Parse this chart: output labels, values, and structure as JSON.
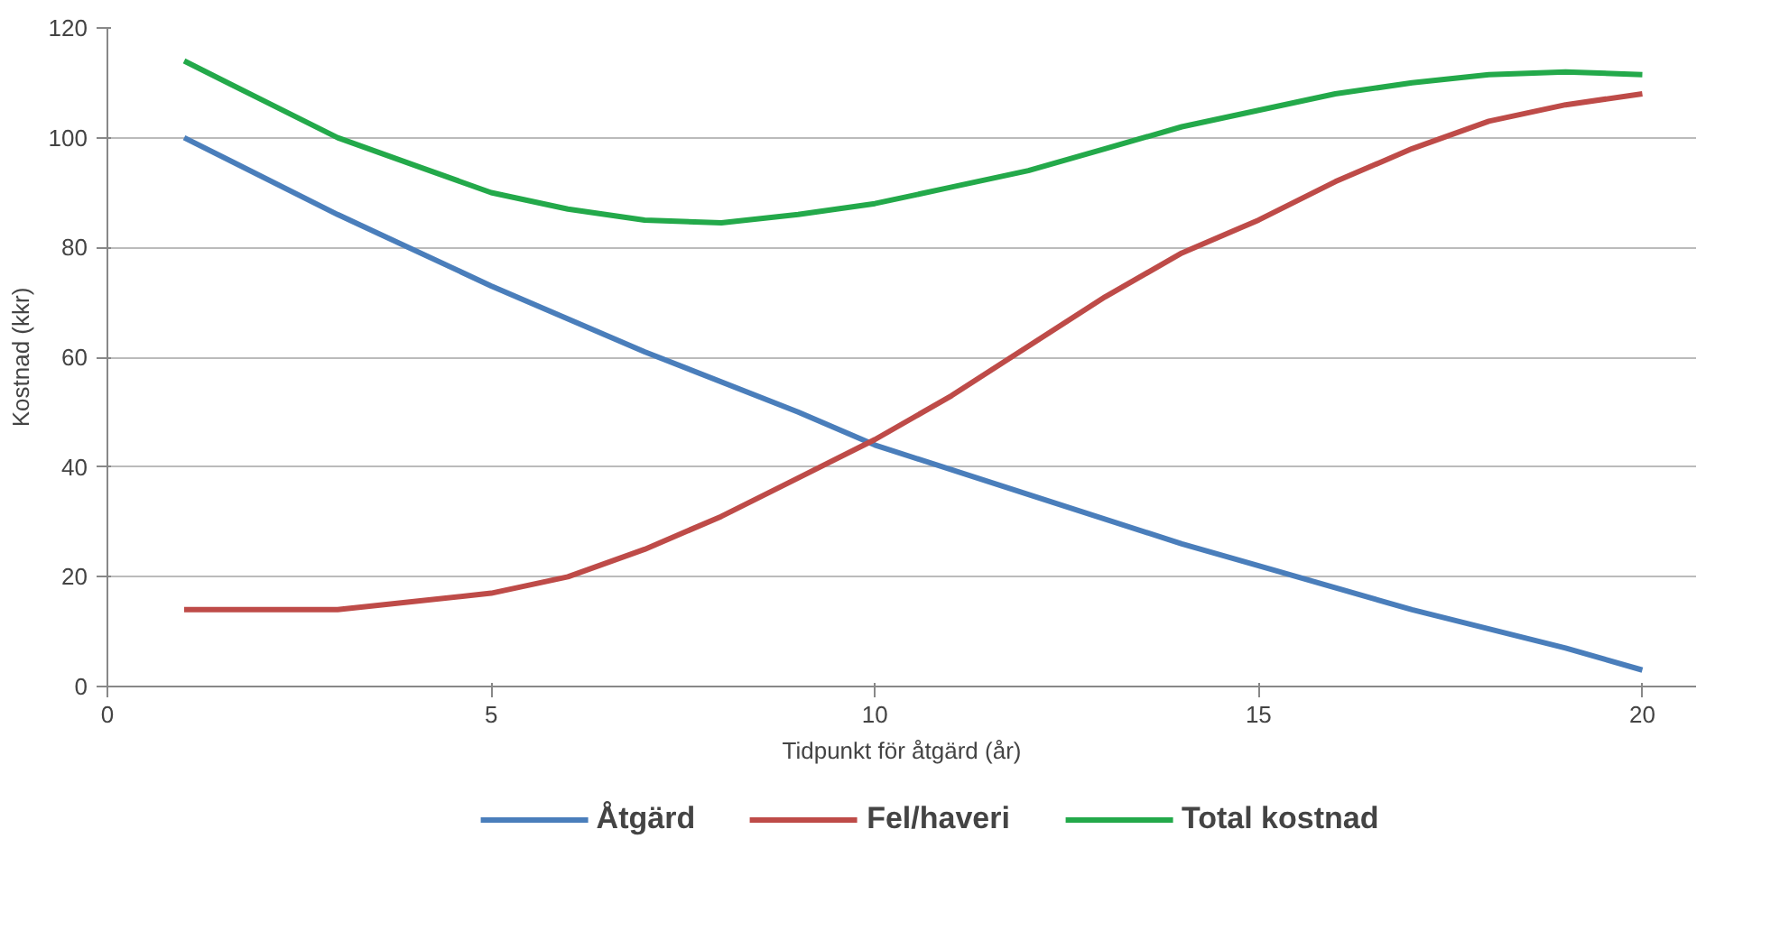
{
  "chart_data": {
    "type": "line",
    "xlabel": "Tidpunkt för åtgärd (år)",
    "ylabel": "Kostnad (kkr)",
    "xlim": [
      0,
      20.7
    ],
    "xticks": [
      0,
      5,
      10,
      15,
      20
    ],
    "ylim": [
      0,
      120
    ],
    "yticks": [
      0,
      20,
      40,
      60,
      80,
      100,
      120
    ],
    "grid": "y",
    "legend": "bottom",
    "marker": "none",
    "line_style": "solid",
    "series": [
      {
        "name": "Åtgärd",
        "color": "#4a7ebb",
        "x": [
          1,
          3,
          5,
          7,
          9,
          10,
          12,
          14,
          15,
          17,
          19,
          20
        ],
        "values": [
          100,
          86,
          73,
          61,
          50,
          44,
          35,
          26,
          22,
          14,
          7,
          3
        ]
      },
      {
        "name": "Fel/haveri",
        "color": "#be4b48",
        "x": [
          1,
          3,
          5,
          6,
          7,
          8,
          9,
          10,
          11,
          12,
          13,
          14,
          15,
          16,
          17,
          18,
          19,
          20
        ],
        "values": [
          14,
          14,
          17,
          20,
          25,
          31,
          38,
          45,
          53,
          62,
          71,
          79,
          85,
          92,
          98,
          103,
          106,
          108
        ]
      },
      {
        "name": "Total kostnad",
        "color": "#23a94a",
        "x": [
          1,
          2,
          3,
          4,
          5,
          6,
          7,
          8,
          9,
          10,
          11,
          12,
          13,
          14,
          15,
          16,
          17,
          18,
          19,
          20
        ],
        "values": [
          114,
          107,
          100,
          95,
          90,
          87,
          85,
          84.5,
          86,
          88,
          91,
          94,
          98,
          102,
          105,
          108,
          110,
          111.5,
          112,
          111.5
        ]
      }
    ]
  }
}
